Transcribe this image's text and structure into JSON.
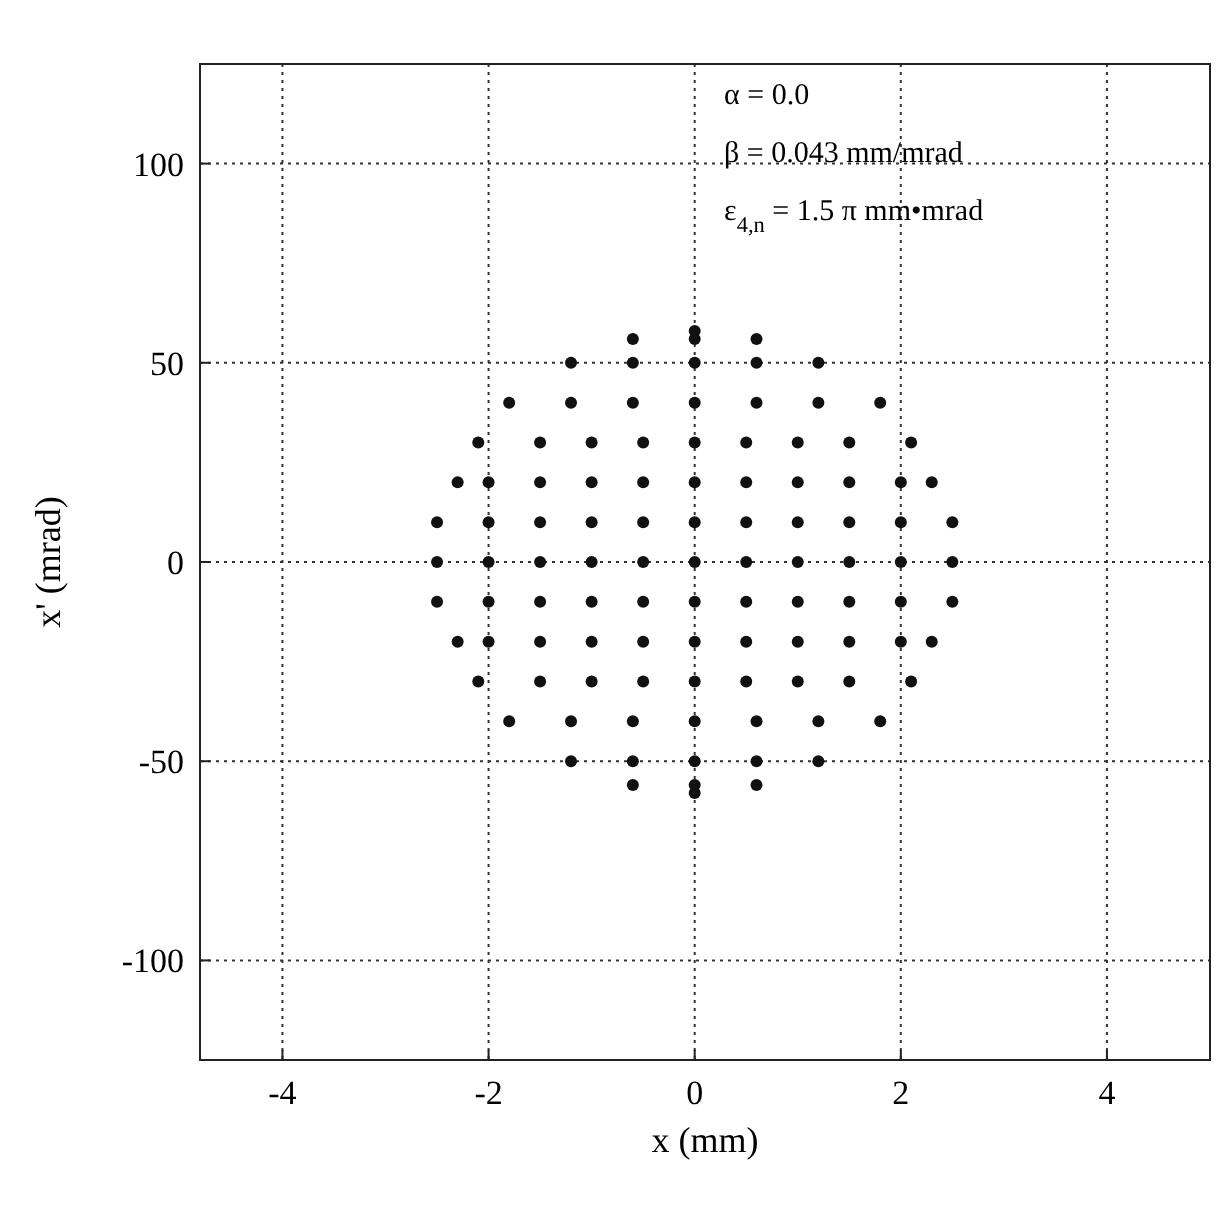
{
  "chart_data": {
    "type": "scatter",
    "xlabel": "x (mm)",
    "ylabel": "x' (mrad)",
    "xlim": [
      -4.8,
      5
    ],
    "ylim": [
      -125,
      125
    ],
    "xticks": [
      -4,
      -2,
      0,
      2,
      4
    ],
    "yticks": [
      -100,
      -50,
      0,
      50,
      100
    ],
    "grid": true,
    "marker": "circle",
    "annotations": [
      "α = 0.0",
      "β = 0.043 mm/mrad",
      "ε$_{4,n}$ = 1.5 π mm•mrad"
    ],
    "series": [
      {
        "color": "#111111",
        "x": [
          0,
          -0.6,
          0,
          0.6,
          -1.2,
          -0.6,
          0,
          0.6,
          1.2,
          -1.8,
          -1.2,
          -0.6,
          0,
          0.6,
          1.2,
          1.8,
          -2.1,
          -1.5,
          -1,
          -0.5,
          0,
          0.5,
          1,
          1.5,
          2.1,
          -2.3,
          -2,
          -1.5,
          -1,
          -0.5,
          0,
          0.5,
          1,
          1.5,
          2,
          2.3,
          -2.5,
          -2,
          -1.5,
          -1,
          -0.5,
          0,
          0.5,
          1,
          1.5,
          2,
          2.5,
          -2.5,
          -2,
          -1.5,
          -1,
          -0.5,
          0,
          0.5,
          1,
          1.5,
          2,
          2.5,
          -2.5,
          -2,
          -1.5,
          -1,
          -0.5,
          0,
          0.5,
          1,
          1.5,
          2,
          2.5,
          -2.3,
          -2,
          -1.5,
          -1,
          -0.5,
          0,
          0.5,
          1,
          1.5,
          2,
          2.3,
          -2.1,
          -1.5,
          -1,
          -0.5,
          0,
          0.5,
          1,
          1.5,
          2.1,
          -1.8,
          -1.2,
          -0.6,
          0,
          0.6,
          1.2,
          1.8,
          -1.2,
          -0.6,
          0,
          0.6,
          1.2,
          -0.6,
          0,
          0.6,
          0
        ],
        "values": [
          58,
          56,
          56,
          56,
          50,
          50,
          50,
          50,
          50,
          40,
          40,
          40,
          40,
          40,
          40,
          40,
          30,
          30,
          30,
          30,
          30,
          30,
          30,
          30,
          30,
          20,
          20,
          20,
          20,
          20,
          20,
          20,
          20,
          20,
          20,
          20,
          10,
          10,
          10,
          10,
          10,
          10,
          10,
          10,
          10,
          10,
          10,
          0,
          0,
          0,
          0,
          0,
          0,
          0,
          0,
          0,
          0,
          0,
          -10,
          -10,
          -10,
          -10,
          -10,
          -10,
          -10,
          -10,
          -10,
          -10,
          -10,
          -20,
          -20,
          -20,
          -20,
          -20,
          -20,
          -20,
          -20,
          -20,
          -20,
          -20,
          -30,
          -30,
          -30,
          -30,
          -30,
          -30,
          -30,
          -30,
          -30,
          -40,
          -40,
          -40,
          -40,
          -40,
          -40,
          -40,
          -50,
          -50,
          -50,
          -50,
          -50,
          -56,
          -56,
          -56,
          -58
        ]
      }
    ]
  }
}
